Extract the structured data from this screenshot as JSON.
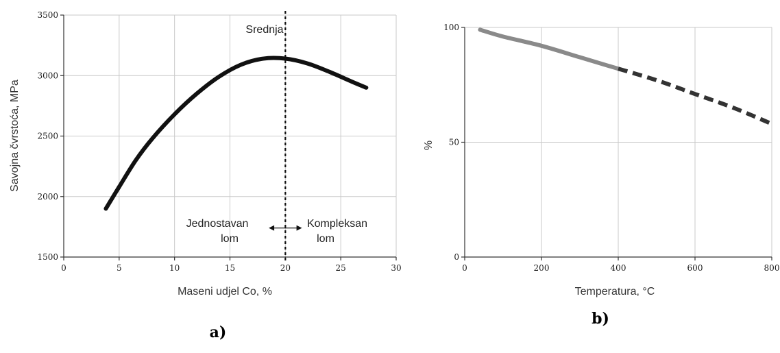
{
  "charts": [
    {
      "panel_label": "a)",
      "annotations": {
        "vline_label": "Srednja",
        "left_region": [
          "Jednostavan",
          "lom"
        ],
        "right_region": [
          "Kompleksan",
          "lom"
        ]
      }
    },
    {
      "panel_label": "b)"
    }
  ],
  "chart_data": [
    {
      "type": "line",
      "title": "",
      "xlabel": "Maseni udjel Co, %",
      "ylabel": "Savojna čvrstoća, MPa",
      "xlim": [
        0,
        30
      ],
      "ylim": [
        1500,
        3500
      ],
      "xticks": [
        0,
        5,
        10,
        15,
        20,
        25,
        30
      ],
      "yticks": [
        1500,
        2000,
        2500,
        3000,
        3500
      ],
      "grid": true,
      "series": [
        {
          "x": [
            3.8,
            5,
            6.5,
            8,
            10,
            12,
            14,
            16,
            18,
            20,
            22,
            24,
            26,
            27.3
          ],
          "y": [
            1900,
            2080,
            2300,
            2480,
            2680,
            2850,
            2990,
            3090,
            3140,
            3140,
            3100,
            3030,
            2950,
            2900
          ],
          "color": "#111111",
          "style": "solid"
        }
      ],
      "vline": {
        "x": 20,
        "style": "dotted",
        "color": "#111111"
      },
      "arrow": {
        "x_from": 18.5,
        "x_to": 21.5,
        "y": 1740
      }
    },
    {
      "type": "line",
      "title": "",
      "xlabel": "Temperatura, °C",
      "ylabel": "%",
      "xlim": [
        0,
        800
      ],
      "ylim": [
        0,
        100
      ],
      "xticks": [
        0,
        200,
        400,
        600,
        800
      ],
      "yticks": [
        0,
        50,
        100
      ],
      "grid": true,
      "series": [
        {
          "x": [
            40,
            100,
            200,
            300,
            400
          ],
          "y": [
            99,
            96,
            92,
            87,
            82
          ],
          "color": "#8a8a8a",
          "style": "solid"
        },
        {
          "x": [
            400,
            500,
            600,
            700,
            800
          ],
          "y": [
            82,
            77,
            71,
            65,
            58
          ],
          "color": "#333333",
          "style": "dashed"
        }
      ]
    }
  ]
}
